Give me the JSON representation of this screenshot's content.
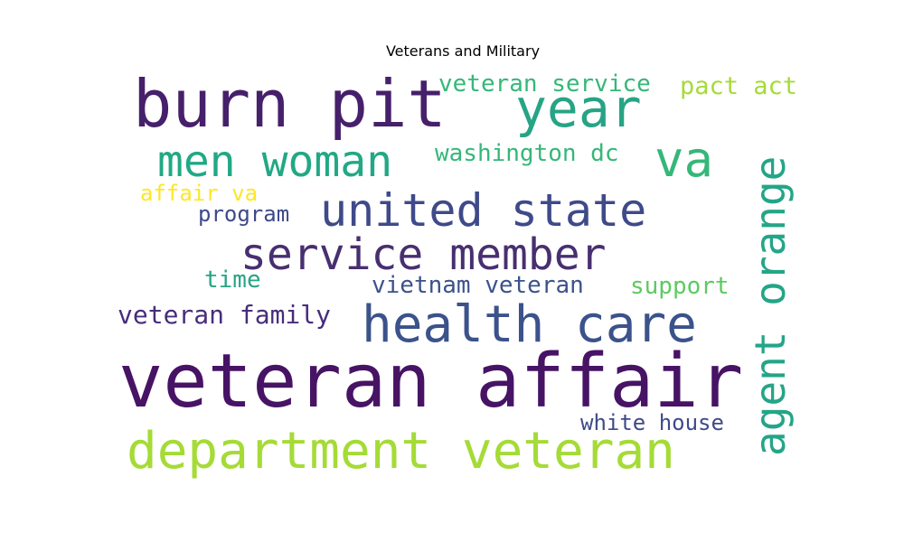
{
  "chart_data": {
    "type": "wordcloud",
    "title": "Veterans and Military",
    "words": [
      {
        "text": "veteran affair",
        "weight": 1.0,
        "color": "#471365"
      },
      {
        "text": "burn pit",
        "weight": 0.78,
        "color": "#46206b"
      },
      {
        "text": "department veteran",
        "weight": 0.68,
        "color": "#a5db36"
      },
      {
        "text": "year",
        "weight": 0.63,
        "color": "#26a485"
      },
      {
        "text": "health care",
        "weight": 0.6,
        "color": "#3b528b"
      },
      {
        "text": "agent orange",
        "weight": 0.55,
        "color": "#24a587"
      },
      {
        "text": "va",
        "weight": 0.55,
        "color": "#35b779"
      },
      {
        "text": "united state",
        "weight": 0.52,
        "color": "#3e4a89"
      },
      {
        "text": "service member",
        "weight": 0.5,
        "color": "#482f70"
      },
      {
        "text": "men woman",
        "weight": 0.48,
        "color": "#22a884"
      },
      {
        "text": "veteran family",
        "weight": 0.32,
        "color": "#472d7b"
      },
      {
        "text": "vietnam veteran",
        "weight": 0.28,
        "color": "#3b528b"
      },
      {
        "text": "white house",
        "weight": 0.26,
        "color": "#3e4a89"
      },
      {
        "text": "veteran service",
        "weight": 0.3,
        "color": "#35b779"
      },
      {
        "text": "pact act",
        "weight": 0.3,
        "color": "#a5db36"
      },
      {
        "text": "washington dc",
        "weight": 0.28,
        "color": "#35b779"
      },
      {
        "text": "support",
        "weight": 0.28,
        "color": "#5ec962"
      },
      {
        "text": "time",
        "weight": 0.28,
        "color": "#26a485"
      },
      {
        "text": "program",
        "weight": 0.26,
        "color": "#3e4a89"
      },
      {
        "text": "affair va",
        "weight": 0.25,
        "color": "#fde725"
      }
    ]
  }
}
